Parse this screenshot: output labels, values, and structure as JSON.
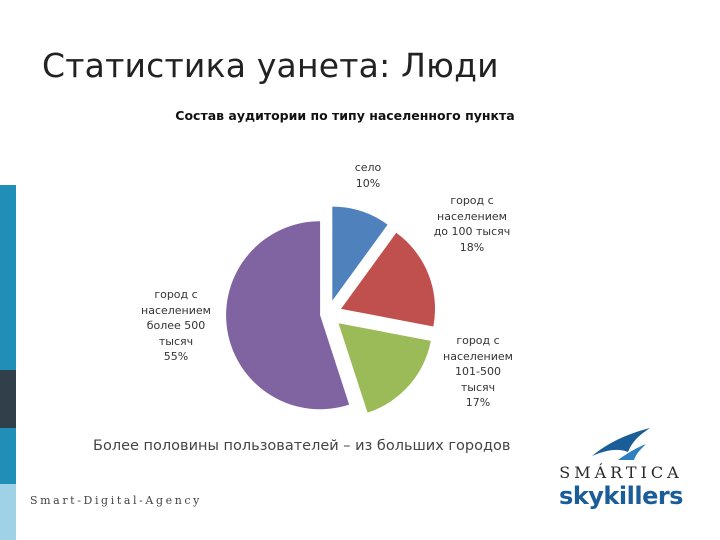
{
  "slide": {
    "title": "Статистика уанета: Люди",
    "caption": "Более половины пользователей – из больших городов"
  },
  "branding": {
    "agency": "Smart-Digital-Agency",
    "logo_top": "SMÁRTICA",
    "logo_bottom": "skykillers",
    "logo_color": "#1a5d99"
  },
  "chart_data": {
    "type": "pie",
    "title": "Состав аудитории по типу населенного пункта",
    "exploded": true,
    "slices": [
      {
        "label_lines": [
          "село"
        ],
        "value": 10,
        "value_label": "10%",
        "color": "#4f81bd"
      },
      {
        "label_lines": [
          "город с",
          "населением",
          "до 100 тысяч"
        ],
        "value": 18,
        "value_label": "18%",
        "color": "#c0504d"
      },
      {
        "label_lines": [
          "город с",
          "населением",
          "101-500",
          "тысяч"
        ],
        "value": 17,
        "value_label": "17%",
        "color": "#9bbb59"
      },
      {
        "label_lines": [
          "город с",
          "населением",
          "более 500",
          "тысяч"
        ],
        "value": 55,
        "value_label": "55%",
        "color": "#8064a2"
      }
    ]
  }
}
